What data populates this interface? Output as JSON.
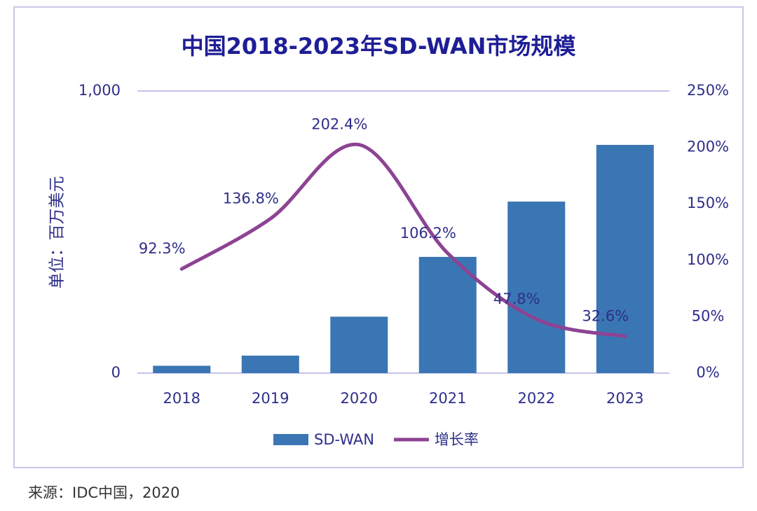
{
  "chart_data": {
    "type": "bar-line",
    "title": "中国2018-2023年SD-WAN市场规模",
    "y_label": "单位：百万美元",
    "categories": [
      "2018",
      "2019",
      "2020",
      "2021",
      "2022",
      "2023"
    ],
    "series": [
      {
        "name": "SD-WAN",
        "type": "bar",
        "color": "#3a76b4",
        "values": [
          26,
          62,
          200,
          412,
          608,
          809
        ]
      },
      {
        "name": "增长率",
        "type": "line",
        "axis": "y2",
        "color": "#8d4393",
        "values": [
          92.3,
          136.8,
          202.4,
          106.2,
          47.8,
          32.6
        ],
        "value_labels": [
          "92.3%",
          "136.8%",
          "202.4%",
          "106.2%",
          "47.8%",
          "32.6%"
        ]
      }
    ],
    "ylim": [
      0,
      1000
    ],
    "yticks": [
      0,
      {
        "value": 1000,
        "label": "1,000"
      }
    ],
    "y2lim": [
      0,
      250
    ],
    "y2ticks": [
      {
        "value": 0,
        "label": "0%"
      },
      {
        "value": 50,
        "label": "50%"
      },
      {
        "value": 100,
        "label": "100%"
      },
      {
        "value": 150,
        "label": "150%"
      },
      {
        "value": 200,
        "label": "200%"
      },
      {
        "value": 250,
        "label": "250%"
      }
    ],
    "grid": true,
    "legend": "bottom"
  },
  "source": "来源：IDC中国，2020"
}
